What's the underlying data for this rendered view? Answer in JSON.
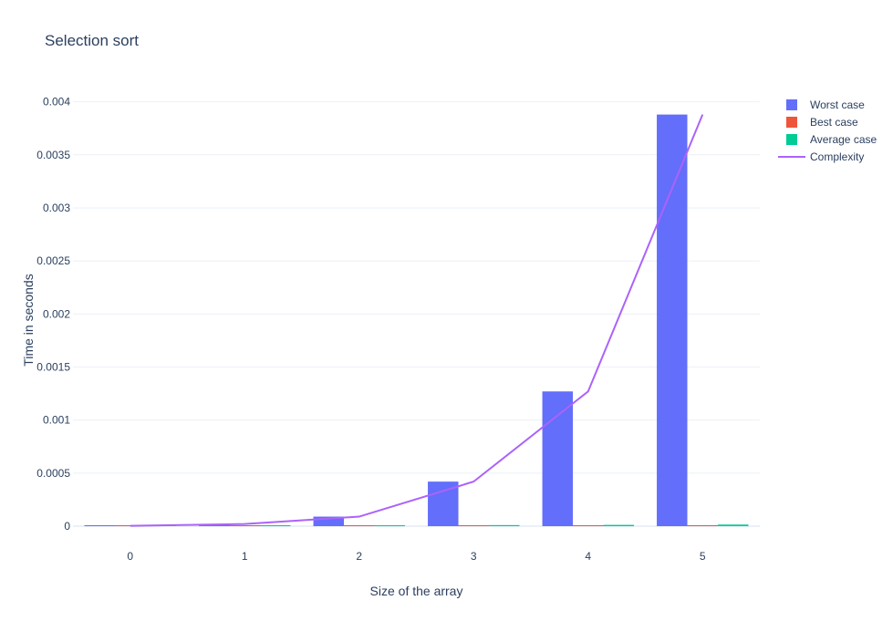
{
  "chart_data": {
    "type": "bar",
    "title": "Selection sort",
    "xlabel": "Size of the array",
    "ylabel": "Time in seconds",
    "categories": [
      "0",
      "1",
      "2",
      "3",
      "4",
      "5"
    ],
    "ylim": [
      0,
      0.0041
    ],
    "yticks": [
      0,
      0.0005,
      0.001,
      0.0015,
      0.002,
      0.0025,
      0.003,
      0.0035,
      0.004
    ],
    "ytick_labels": [
      "0",
      "0.0005",
      "0.001",
      "0.0015",
      "0.002",
      "0.0025",
      "0.003",
      "0.0035",
      "0.004"
    ],
    "grid": true,
    "legend_position": "top-right",
    "series": [
      {
        "name": "Worst case",
        "kind": "bar",
        "color": "#636efa",
        "values": [
          3e-06,
          2e-05,
          9e-05,
          0.00042,
          0.00127,
          0.00388
        ]
      },
      {
        "name": "Best case",
        "kind": "bar",
        "color": "#ef553b",
        "values": [
          1e-06,
          3e-06,
          4e-06,
          5e-06,
          7e-06,
          9e-06
        ]
      },
      {
        "name": "Average case",
        "kind": "bar",
        "color": "#00cc96",
        "values": [
          2e-06,
          5e-06,
          7e-06,
          1e-05,
          1.2e-05,
          1.5e-05
        ]
      },
      {
        "name": "Complexity",
        "kind": "line",
        "color": "#ab63fa",
        "values": [
          3e-06,
          2e-05,
          9e-05,
          0.00042,
          0.00127,
          0.00388
        ]
      }
    ]
  }
}
